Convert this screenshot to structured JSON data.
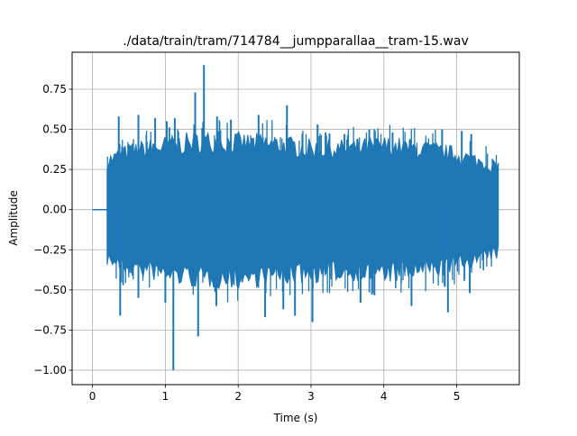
{
  "chart_data": {
    "type": "line",
    "title": "./data/train/tram/714784__jumpparallaa__tram-15.wav",
    "xlabel": "Time (s)",
    "ylabel": "Amplitude",
    "xlim": [
      -0.28,
      5.86
    ],
    "ylim": [
      -1.09,
      0.98
    ],
    "xticks": [
      0,
      1,
      2,
      3,
      4,
      5
    ],
    "yticks": [
      -1.0,
      -0.75,
      -0.5,
      -0.25,
      0.0,
      0.25,
      0.5,
      0.75
    ],
    "xtick_labels": [
      "0",
      "1",
      "2",
      "3",
      "4",
      "5"
    ],
    "ytick_labels": [
      "−1.00",
      "−0.75",
      "−0.50",
      "−0.25",
      "0.00",
      "0.25",
      "0.50",
      "0.75"
    ],
    "grid": true,
    "legend": "none",
    "series": [
      {
        "color": "#1f77b4",
        "signal_start": 0.2,
        "signal_end": 5.58,
        "envelope_x": [
          0.2,
          0.5,
          1.0,
          1.5,
          2.0,
          2.5,
          3.0,
          3.5,
          4.0,
          4.5,
          5.0,
          5.58
        ],
        "envelope_upper": [
          0.32,
          0.38,
          0.42,
          0.45,
          0.44,
          0.43,
          0.4,
          0.4,
          0.42,
          0.4,
          0.36,
          0.28
        ],
        "envelope_lower": [
          -0.32,
          -0.38,
          -0.42,
          -0.45,
          -0.45,
          -0.43,
          -0.42,
          -0.4,
          -0.42,
          -0.4,
          -0.36,
          -0.28
        ],
        "peaks": [
          {
            "x": 0.36,
            "y": 0.58
          },
          {
            "x": 0.63,
            "y": 0.59
          },
          {
            "x": 0.86,
            "y": 0.57
          },
          {
            "x": 1.02,
            "y": 0.55
          },
          {
            "x": 1.13,
            "y": 0.57
          },
          {
            "x": 1.41,
            "y": 0.73
          },
          {
            "x": 1.53,
            "y": 0.9
          },
          {
            "x": 1.71,
            "y": 0.58
          },
          {
            "x": 1.9,
            "y": 0.56
          },
          {
            "x": 2.28,
            "y": 0.59
          },
          {
            "x": 2.67,
            "y": 0.65
          },
          {
            "x": 3.09,
            "y": 0.53
          },
          {
            "x": 3.2,
            "y": 0.48
          },
          {
            "x": 3.46,
            "y": 0.47
          },
          {
            "x": 3.8,
            "y": 0.5
          },
          {
            "x": 4.12,
            "y": 0.48
          },
          {
            "x": 4.8,
            "y": 0.5
          },
          {
            "x": 5.07,
            "y": 0.49
          },
          {
            "x": 5.2,
            "y": 0.47
          },
          {
            "x": 0.38,
            "y": -0.66
          },
          {
            "x": 0.63,
            "y": -0.55
          },
          {
            "x": 1.0,
            "y": -0.58
          },
          {
            "x": 1.11,
            "y": -1.0
          },
          {
            "x": 1.45,
            "y": -0.79
          },
          {
            "x": 1.7,
            "y": -0.6
          },
          {
            "x": 2.37,
            "y": -0.67
          },
          {
            "x": 2.62,
            "y": -0.62
          },
          {
            "x": 2.78,
            "y": -0.66
          },
          {
            "x": 3.02,
            "y": -0.7
          },
          {
            "x": 3.68,
            "y": -0.58
          },
          {
            "x": 4.38,
            "y": -0.6
          },
          {
            "x": 4.88,
            "y": -0.64
          },
          {
            "x": 5.18,
            "y": -0.52
          }
        ]
      }
    ]
  }
}
